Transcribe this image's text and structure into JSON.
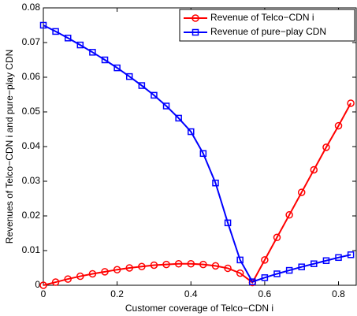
{
  "chart_data": {
    "type": "line",
    "xlabel": "Customer coverage of Telco−CDN i",
    "ylabel": "Revenues of Telco−CDN i and pure−play CDN",
    "x": [
      0,
      0.0333,
      0.0667,
      0.1,
      0.1333,
      0.1667,
      0.2,
      0.2333,
      0.2667,
      0.3,
      0.3333,
      0.3667,
      0.4,
      0.4333,
      0.4667,
      0.5,
      0.5333,
      0.5667,
      0.6,
      0.6333,
      0.6667,
      0.7,
      0.7333,
      0.7667,
      0.8,
      0.8333
    ],
    "series": [
      {
        "name": "Revenue of Telco−CDN i",
        "color": "#ff0000",
        "marker": "circle",
        "values": [
          0,
          0.0009,
          0.0018,
          0.0026,
          0.0033,
          0.0039,
          0.0045,
          0.005,
          0.0054,
          0.0058,
          0.006,
          0.0062,
          0.0062,
          0.006,
          0.0056,
          0.0049,
          0.0035,
          0.0008,
          0.0073,
          0.0138,
          0.0203,
          0.0268,
          0.0333,
          0.0398,
          0.046,
          0.0525
        ]
      },
      {
        "name": "Revenue of pure−play CDN",
        "color": "#0000ff",
        "marker": "square",
        "values": [
          0.075,
          0.0732,
          0.0713,
          0.0693,
          0.0672,
          0.065,
          0.0627,
          0.0602,
          0.0576,
          0.0548,
          0.0517,
          0.0482,
          0.0443,
          0.038,
          0.0295,
          0.018,
          0.0073,
          0.001,
          0.0022,
          0.0033,
          0.0043,
          0.0053,
          0.0062,
          0.0071,
          0.008,
          0.0088
        ]
      }
    ],
    "xlim": [
      0,
      0.848
    ],
    "xticks": [
      0,
      0.2,
      0.4,
      0.6,
      0.8
    ],
    "ylim": [
      0,
      0.08
    ],
    "yticks": [
      0,
      0.01,
      0.02,
      0.03,
      0.04,
      0.05,
      0.06,
      0.07,
      0.08
    ],
    "grid": false,
    "legend": "top-right"
  }
}
